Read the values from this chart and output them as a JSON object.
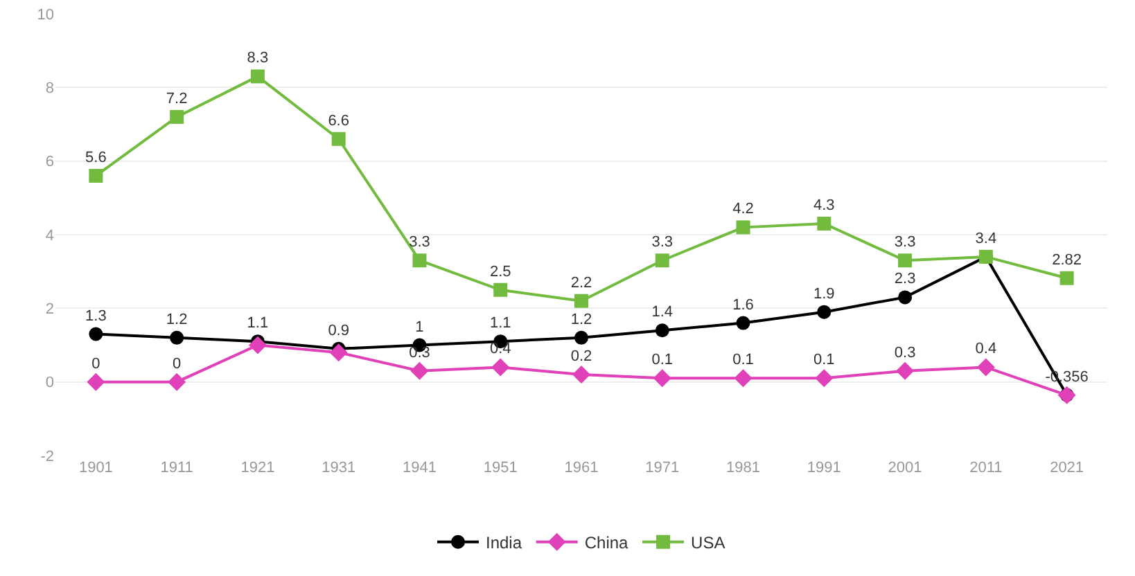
{
  "chart_data": {
    "type": "line",
    "categories": [
      "1901",
      "1911",
      "1921",
      "1931",
      "1941",
      "1951",
      "1961",
      "1971",
      "1981",
      "1991",
      "2001",
      "2011",
      "2021"
    ],
    "ylim": [
      -2,
      10
    ],
    "yticks": [
      -2,
      0,
      2,
      4,
      6,
      8,
      10
    ],
    "grid": "y",
    "legend": "bottom",
    "series": [
      {
        "name": "India",
        "color": "#000000",
        "marker": "circle",
        "values": [
          1.3,
          1.2,
          1.1,
          0.9,
          1,
          1.1,
          1.2,
          1.4,
          1.6,
          1.9,
          2.3,
          3.4,
          -0.356
        ],
        "value_labels": [
          "1.3",
          "1.2",
          "1.1",
          "0.9",
          "1",
          "1.1",
          "1.2",
          "1.4",
          "1.6",
          "1.9",
          "2.3",
          null,
          "-0.356"
        ]
      },
      {
        "name": "China",
        "color": "#e040b8",
        "marker": "diamond",
        "values": [
          0,
          0,
          1.0,
          0.8,
          0.3,
          0.4,
          0.2,
          0.1,
          0.1,
          0.1,
          0.3,
          0.4,
          -0.36
        ],
        "value_labels": [
          "0",
          "0",
          null,
          null,
          "0.3",
          "0.4",
          "0.2",
          "0.1",
          "0.1",
          "0.1",
          "0.3",
          "0.4",
          null
        ]
      },
      {
        "name": "USA",
        "color": "#72bb3e",
        "marker": "square",
        "values": [
          5.6,
          7.2,
          8.3,
          6.6,
          3.3,
          2.5,
          2.2,
          3.3,
          4.2,
          4.3,
          3.3,
          3.4,
          2.82
        ],
        "value_labels": [
          "5.6",
          "7.2",
          "8.3",
          "6.6",
          "3.3",
          "2.5",
          "2.2",
          "3.3",
          "4.2",
          "4.3",
          "3.3",
          "3.4",
          "2.82"
        ]
      }
    ]
  }
}
